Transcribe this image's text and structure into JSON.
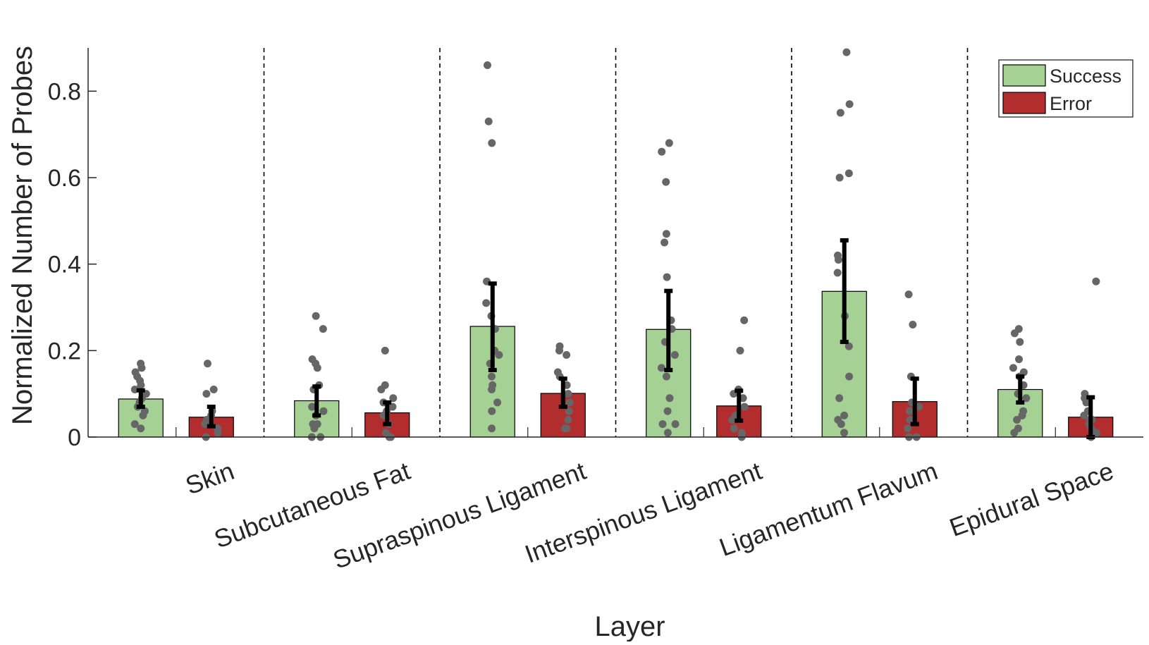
{
  "chart_data": {
    "type": "bar",
    "title": "",
    "xlabel": "Layer",
    "ylabel": "Normalized Number of Probes",
    "ylim": [
      0,
      0.9
    ],
    "yticks": [
      0,
      0.2,
      0.4,
      0.6,
      0.8
    ],
    "ytick_labels": [
      "0",
      "0.2",
      "0.4",
      "0.6",
      "0.8"
    ],
    "grid": false,
    "legend_position": "top-right",
    "categories": [
      "Skin",
      "Subcutaneous Fat",
      "Supraspinous Ligament",
      "Interspinous Ligament",
      "Ligamentum Flavum",
      "Epidural Space"
    ],
    "series": [
      {
        "name": "Success",
        "color": "#a6d195",
        "values": [
          0.088,
          0.084,
          0.256,
          0.249,
          0.337,
          0.11
        ],
        "error_low": [
          0.07,
          0.05,
          0.155,
          0.155,
          0.22,
          0.08
        ],
        "error_high": [
          0.108,
          0.117,
          0.355,
          0.338,
          0.455,
          0.14
        ],
        "points": [
          [
            0.17,
            0.16,
            0.15,
            0.14,
            0.13,
            0.12,
            0.11,
            0.1,
            0.09,
            0.08,
            0.07,
            0.06,
            0.05,
            0.03,
            0.02
          ],
          [
            0.28,
            0.25,
            0.18,
            0.17,
            0.16,
            0.12,
            0.11,
            0.07,
            0.06,
            0.05,
            0.03,
            0.03,
            0.02,
            0.0,
            0.0
          ],
          [
            0.86,
            0.73,
            0.68,
            0.36,
            0.31,
            0.28,
            0.25,
            0.2,
            0.19,
            0.17,
            0.14,
            0.12,
            0.11,
            0.08,
            0.06,
            0.02
          ],
          [
            0.68,
            0.66,
            0.59,
            0.47,
            0.45,
            0.37,
            0.27,
            0.25,
            0.22,
            0.19,
            0.16,
            0.14,
            0.09,
            0.06,
            0.03,
            0.03,
            0.01
          ],
          [
            0.89,
            0.77,
            0.75,
            0.61,
            0.6,
            0.42,
            0.41,
            0.38,
            0.28,
            0.21,
            0.14,
            0.09,
            0.05,
            0.04,
            0.03,
            0.01
          ],
          [
            0.25,
            0.24,
            0.22,
            0.18,
            0.16,
            0.15,
            0.14,
            0.12,
            0.1,
            0.09,
            0.06,
            0.05,
            0.04,
            0.02,
            0.01
          ]
        ]
      },
      {
        "name": "Error",
        "color": "#b22d2d",
        "values": [
          0.046,
          0.056,
          0.101,
          0.072,
          0.082,
          0.046
        ],
        "error_low": [
          0.025,
          0.03,
          0.07,
          0.038,
          0.03,
          0.0
        ],
        "error_high": [
          0.07,
          0.08,
          0.135,
          0.107,
          0.135,
          0.092
        ],
        "points": [
          [
            0.17,
            0.11,
            0.1,
            0.06,
            0.05,
            0.04,
            0.03,
            0.02,
            0.01,
            0.0
          ],
          [
            0.2,
            0.12,
            0.11,
            0.09,
            0.08,
            0.07,
            0.06,
            0.05,
            0.03,
            0.01,
            0.0,
            0.0
          ],
          [
            0.21,
            0.2,
            0.19,
            0.15,
            0.14,
            0.12,
            0.1,
            0.08,
            0.06,
            0.04,
            0.02,
            0.02
          ],
          [
            0.27,
            0.2,
            0.11,
            0.1,
            0.09,
            0.07,
            0.05,
            0.04,
            0.02,
            0.01,
            0.0
          ],
          [
            0.33,
            0.26,
            0.14,
            0.08,
            0.07,
            0.06,
            0.04,
            0.02,
            0.0,
            0.0
          ],
          [
            0.36,
            0.1,
            0.09,
            0.08,
            0.06,
            0.05,
            0.04,
            0.04,
            0.03,
            0.02,
            0.01,
            0.0
          ]
        ]
      }
    ],
    "point_color": "#666666",
    "errorbar_color": "#000000",
    "separator_style": "dashed"
  }
}
